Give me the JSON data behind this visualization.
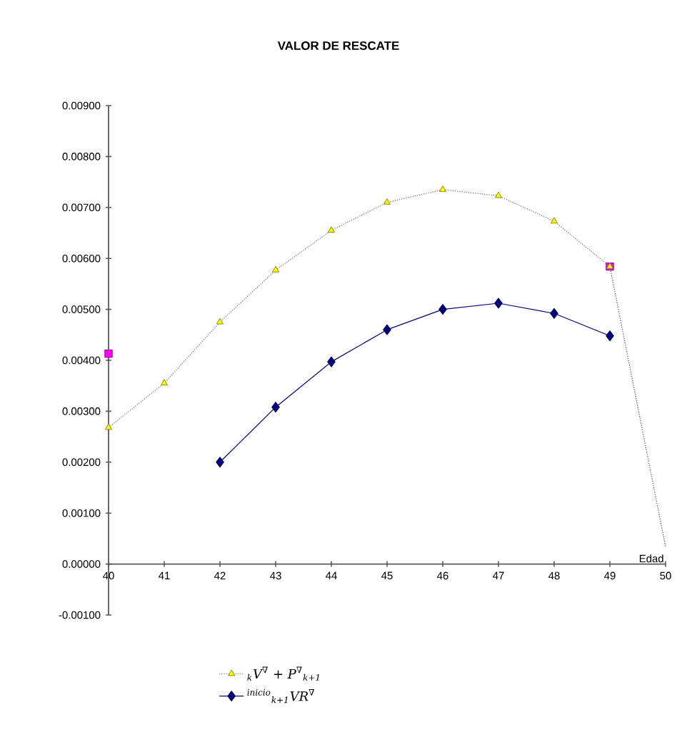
{
  "chart_data": {
    "type": "line",
    "title": "VALOR DE RESCATE",
    "xlabel": "Edad",
    "x": [
      40,
      41,
      42,
      43,
      44,
      45,
      46,
      47,
      48,
      49
    ],
    "xlim": [
      40,
      50
    ],
    "xticks": [
      40,
      41,
      42,
      43,
      44,
      45,
      46,
      47,
      48,
      49,
      50
    ],
    "ylim": [
      -0.001,
      0.009
    ],
    "yticks": [
      {
        "value": -0.001,
        "label": "-0.00100"
      },
      {
        "value": 0,
        "label": "0.00000"
      },
      {
        "value": 0.001,
        "label": "0.00100"
      },
      {
        "value": 0.002,
        "label": "0.00200"
      },
      {
        "value": 0.003,
        "label": "0.00300"
      },
      {
        "value": 0.004,
        "label": "0.00400"
      },
      {
        "value": 0.005,
        "label": "0.00500"
      },
      {
        "value": 0.006,
        "label": "0.00600"
      },
      {
        "value": 0.007,
        "label": "0.00700"
      },
      {
        "value": 0.008,
        "label": "0.00800"
      },
      {
        "value": 0.009,
        "label": "0.00900"
      }
    ],
    "grid": false,
    "legend": "bottom",
    "series": [
      {
        "type": "scatter",
        "color": "#ff00ff",
        "marker": "square",
        "x": [
          40,
          49
        ],
        "values": [
          0.00413,
          0.00584
        ]
      },
      {
        "name": "$_{k}$V$^{∇}$ + P$^{∇}$$_{k+1}$",
        "color": "#ffff00",
        "marker": "triangle",
        "line_style": "dotted",
        "values": [
          0.00268,
          0.00355,
          0.00475,
          0.00577,
          0.00655,
          0.0071,
          0.00735,
          0.00723,
          0.00673,
          0.00584
        ]
      },
      {
        "color": "#404040",
        "marker": "none",
        "line_style": "dotted",
        "x": [
          49,
          50
        ],
        "values": [
          0.00584,
          0.00034
        ]
      },
      {
        "name": "$^{inicio}$$_{k+1}$VR$^{∇}$",
        "color": "#000080",
        "marker": "diamond",
        "line_style": "solid",
        "values": [
          null,
          null,
          0.002,
          0.00308,
          0.00397,
          0.0046,
          0.005,
          0.00512,
          0.00492,
          0.00448
        ]
      }
    ]
  }
}
